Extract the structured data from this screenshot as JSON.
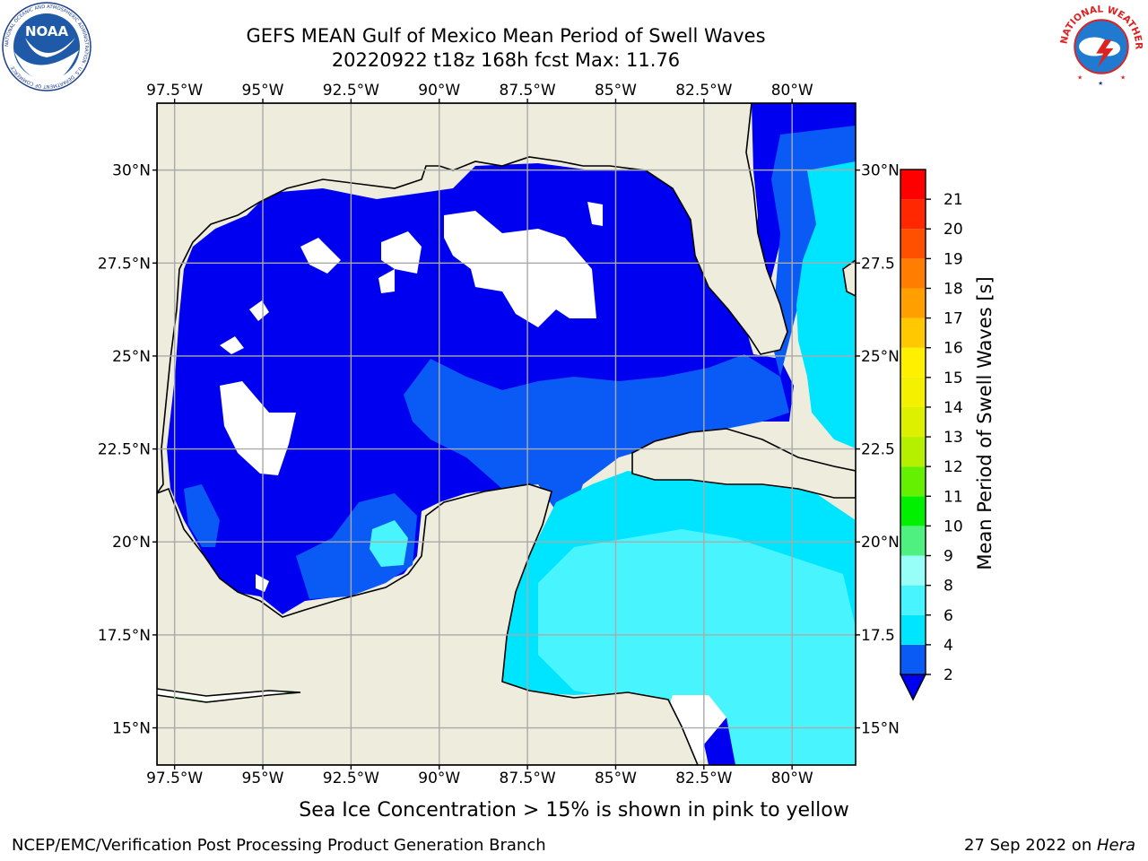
{
  "title": {
    "line1": "GEFS MEAN Gulf of Mexico Mean Period of Swell Waves",
    "line2": "20220922 t18z 168h fcst   Max: 11.76"
  },
  "map": {
    "lon_labels": [
      "97.5°W",
      "95°W",
      "92.5°W",
      "90°W",
      "87.5°W",
      "85°W",
      "82.5°W",
      "80°W"
    ],
    "lat_labels": [
      "30°N",
      "27.5°N",
      "25°N",
      "22.5°N",
      "20°N",
      "17.5°N",
      "15°N"
    ],
    "lat_labels_right": [
      "30°N",
      "27.5",
      "25°N",
      "22.5",
      "20°N",
      "17.5",
      "15°N"
    ],
    "lon_range": [
      -98,
      -78.2
    ],
    "lat_range": [
      14,
      31.8
    ],
    "colors": {
      "land": "#eeecdc",
      "no_data": "#ffffff",
      "grid": "#aaaaaa"
    }
  },
  "colorbar": {
    "label": "Mean Period of Swell Waves [s]",
    "ticks": [
      "2",
      "4",
      "6",
      "8",
      "9",
      "10",
      "11",
      "12",
      "13",
      "14",
      "15",
      "16",
      "17",
      "18",
      "19",
      "20",
      "21"
    ],
    "colors": [
      "#0a5af5",
      "#00e5ff",
      "#48f5ff",
      "#98fff8",
      "#50f080",
      "#00f000",
      "#64f000",
      "#b4f000",
      "#dcf000",
      "#f5f000",
      "#fff000",
      "#ffc800",
      "#ffa000",
      "#ff7d00",
      "#ff5000",
      "#ff2800",
      "#ff0000"
    ],
    "under_color": "#0000f0"
  },
  "caption": "Sea Ice Concentration > 15% is shown in pink to yellow",
  "footer": {
    "left": "NCEP/EMC/Verification Post Processing Product Generation Branch",
    "right_prefix": "27 Sep 2022 on ",
    "right_host": "Hera"
  },
  "logos": {
    "left": "NOAA",
    "left_ring": "NATIONAL OCEANIC AND ATMOSPHERIC ADMINISTRATION · U.S. DEPARTMENT OF COMMERCE",
    "right_ring": "NATIONAL WEATHER SERVICE"
  }
}
